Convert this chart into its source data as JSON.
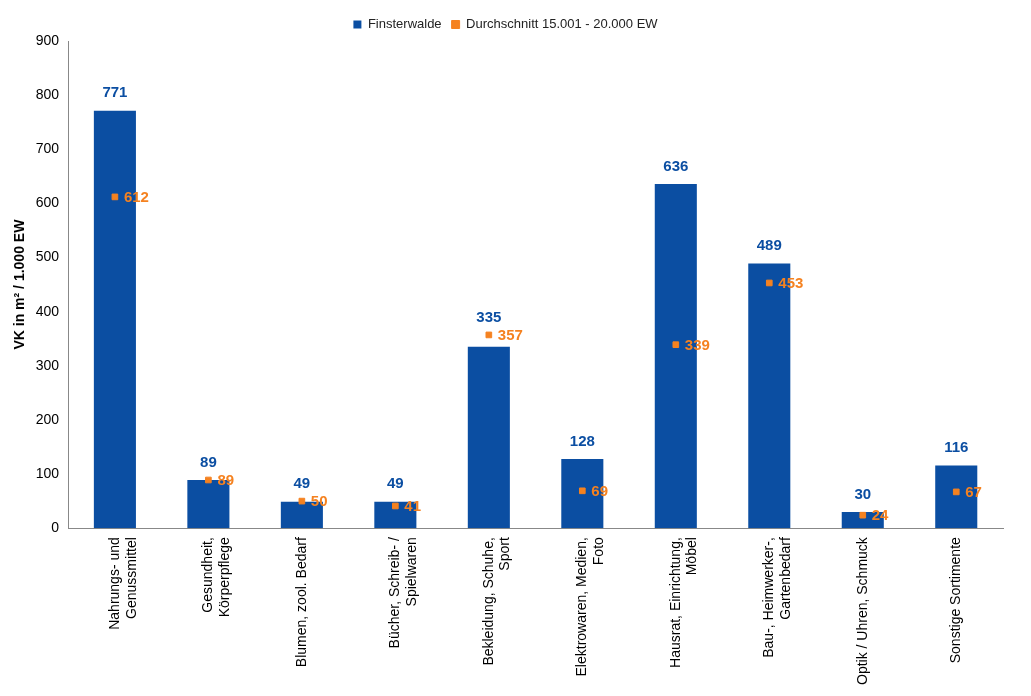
{
  "chart_data": {
    "type": "bar",
    "ylabel": "VK in m² / 1.000 EW",
    "categories": [
      "Nahrungs- und\nGenussmittel",
      "Gesundheit,\nKörperpflege",
      "Blumen, zool. Bedarf",
      "Bücher, Schreib- /\nSpielwaren",
      "Bekleidung, Schuhe,\nSport",
      "Elektrowaren, Medien,\nFoto",
      "Hausrat, Einrichtung,\nMöbel",
      "Bau-, Heimwerker-,\nGartenbedarf",
      "Optik / Uhren, Schmuck",
      "Sonstige Sortimente"
    ],
    "series": [
      {
        "name": "Finsterwalde",
        "color": "#0b4ea2",
        "values": [
          771,
          89,
          49,
          49,
          335,
          128,
          636,
          489,
          30,
          116
        ]
      },
      {
        "name": "Durchschnitt 15.001 - 20.000 EW",
        "type": "scatter",
        "color": "#f58220",
        "marker": "square",
        "values": [
          612,
          89,
          50,
          41,
          357,
          69,
          339,
          453,
          24,
          67
        ]
      }
    ],
    "ylim": [
      0,
      900
    ],
    "yticks": [
      0,
      100,
      200,
      300,
      400,
      500,
      600,
      700,
      800,
      900
    ],
    "grid": false,
    "legend": "top",
    "data_labels": true
  }
}
